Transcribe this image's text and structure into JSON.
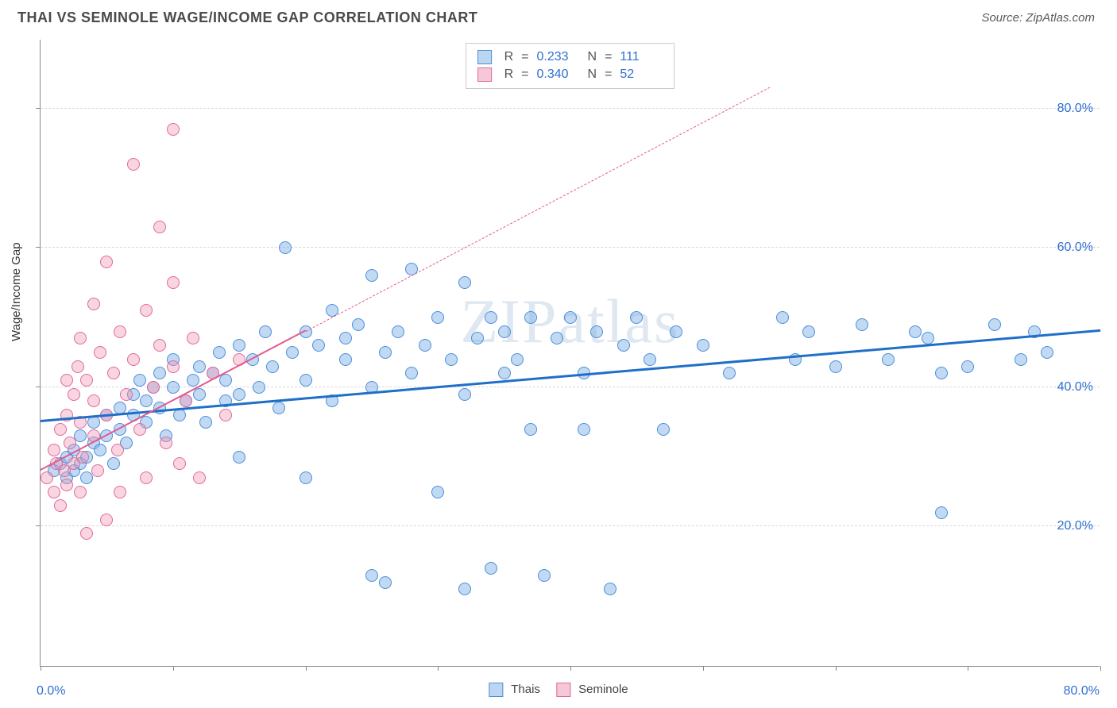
{
  "header": {
    "title": "THAI VS SEMINOLE WAGE/INCOME GAP CORRELATION CHART",
    "source": "Source: ZipAtlas.com"
  },
  "watermark": "ZIPatlas",
  "chart": {
    "type": "scatter",
    "ylabel": "Wage/Income Gap",
    "xlim": [
      0,
      80
    ],
    "ylim": [
      0,
      90
    ],
    "xticks": [
      0,
      10,
      20,
      30,
      40,
      50,
      60,
      70,
      80
    ],
    "ygrid": [
      20,
      40,
      60,
      80
    ],
    "ytick_labels": [
      "20.0%",
      "40.0%",
      "60.0%",
      "80.0%"
    ],
    "x_min_label": "0.0%",
    "x_max_label": "80.0%",
    "background_color": "#ffffff",
    "grid_color": "#d8d8d8",
    "ylabel_label_color": "#2f6fd0",
    "series": [
      {
        "name": "Thais",
        "marker_fill": "rgba(120,170,230,0.45)",
        "marker_stroke": "#4a90d9",
        "marker_size": 16,
        "swatch_fill": "#bcd6f2",
        "swatch_stroke": "#4a90d9",
        "R": "0.233",
        "N": "111",
        "trend": {
          "x1": 0,
          "y1": 35,
          "x2": 80,
          "y2": 48,
          "color": "#1f6fc9",
          "width": 3,
          "dashed": false
        },
        "points": [
          [
            1,
            28
          ],
          [
            1.5,
            29
          ],
          [
            2,
            30
          ],
          [
            2,
            27
          ],
          [
            2.5,
            28
          ],
          [
            2.5,
            31
          ],
          [
            3,
            29
          ],
          [
            3,
            33
          ],
          [
            3.5,
            30
          ],
          [
            3.5,
            27
          ],
          [
            4,
            32
          ],
          [
            4,
            35
          ],
          [
            4.5,
            31
          ],
          [
            5,
            36
          ],
          [
            5,
            33
          ],
          [
            5.5,
            29
          ],
          [
            6,
            37
          ],
          [
            6,
            34
          ],
          [
            6.5,
            32
          ],
          [
            7,
            39
          ],
          [
            7,
            36
          ],
          [
            7.5,
            41
          ],
          [
            8,
            38
          ],
          [
            8,
            35
          ],
          [
            8.5,
            40
          ],
          [
            9,
            42
          ],
          [
            9,
            37
          ],
          [
            9.5,
            33
          ],
          [
            10,
            40
          ],
          [
            10,
            44
          ],
          [
            10.5,
            36
          ],
          [
            11,
            38
          ],
          [
            11.5,
            41
          ],
          [
            12,
            39
          ],
          [
            12,
            43
          ],
          [
            12.5,
            35
          ],
          [
            13,
            42
          ],
          [
            13.5,
            45
          ],
          [
            14,
            38
          ],
          [
            14,
            41
          ],
          [
            15,
            46
          ],
          [
            15,
            39
          ],
          [
            15,
            30
          ],
          [
            16,
            44
          ],
          [
            16.5,
            40
          ],
          [
            17,
            48
          ],
          [
            17.5,
            43
          ],
          [
            18,
            37
          ],
          [
            18.5,
            60
          ],
          [
            19,
            45
          ],
          [
            20,
            41
          ],
          [
            20,
            48
          ],
          [
            20,
            27
          ],
          [
            21,
            46
          ],
          [
            22,
            38
          ],
          [
            22,
            51
          ],
          [
            23,
            44
          ],
          [
            23,
            47
          ],
          [
            24,
            49
          ],
          [
            25,
            40
          ],
          [
            25,
            56
          ],
          [
            25,
            13
          ],
          [
            26,
            45
          ],
          [
            26,
            12
          ],
          [
            27,
            48
          ],
          [
            28,
            42
          ],
          [
            28,
            57
          ],
          [
            29,
            46
          ],
          [
            30,
            50
          ],
          [
            30,
            25
          ],
          [
            31,
            44
          ],
          [
            32,
            39
          ],
          [
            32,
            11
          ],
          [
            32,
            55
          ],
          [
            33,
            47
          ],
          [
            34,
            50
          ],
          [
            34,
            14
          ],
          [
            35,
            42
          ],
          [
            35,
            48
          ],
          [
            36,
            44
          ],
          [
            37,
            50
          ],
          [
            37,
            34
          ],
          [
            38,
            13
          ],
          [
            39,
            47
          ],
          [
            40,
            50
          ],
          [
            41,
            42
          ],
          [
            41,
            34
          ],
          [
            42,
            48
          ],
          [
            43,
            11
          ],
          [
            44,
            46
          ],
          [
            45,
            50
          ],
          [
            46,
            44
          ],
          [
            47,
            34
          ],
          [
            48,
            48
          ],
          [
            50,
            46
          ],
          [
            52,
            42
          ],
          [
            56,
            50
          ],
          [
            57,
            44
          ],
          [
            58,
            48
          ],
          [
            60,
            43
          ],
          [
            62,
            49
          ],
          [
            64,
            44
          ],
          [
            66,
            48
          ],
          [
            67,
            47
          ],
          [
            68,
            22
          ],
          [
            70,
            43
          ],
          [
            72,
            49
          ],
          [
            74,
            44
          ],
          [
            75,
            48
          ],
          [
            76,
            45
          ],
          [
            68,
            42
          ]
        ]
      },
      {
        "name": "Seminole",
        "marker_fill": "rgba(240,150,180,0.40)",
        "marker_stroke": "#e06a9a",
        "marker_size": 16,
        "swatch_fill": "#f6c7d8",
        "swatch_stroke": "#e06a9a",
        "R": "0.340",
        "N": "52",
        "trend": {
          "x1": 0,
          "y1": 28,
          "x2": 20,
          "y2": 48,
          "extend_to_x": 55,
          "extend_to_y": 83,
          "color": "#e35a8e",
          "width": 2.5,
          "dashed_after": true
        },
        "points": [
          [
            0.5,
            27
          ],
          [
            1,
            25
          ],
          [
            1,
            31
          ],
          [
            1.2,
            29
          ],
          [
            1.5,
            23
          ],
          [
            1.5,
            34
          ],
          [
            1.8,
            28
          ],
          [
            2,
            26
          ],
          [
            2,
            36
          ],
          [
            2,
            41
          ],
          [
            2.2,
            32
          ],
          [
            2.5,
            39
          ],
          [
            2.5,
            29
          ],
          [
            2.8,
            43
          ],
          [
            3,
            35
          ],
          [
            3,
            25
          ],
          [
            3,
            47
          ],
          [
            3.2,
            30
          ],
          [
            3.5,
            41
          ],
          [
            3.5,
            19
          ],
          [
            4,
            38
          ],
          [
            4,
            33
          ],
          [
            4,
            52
          ],
          [
            4.3,
            28
          ],
          [
            4.5,
            45
          ],
          [
            5,
            36
          ],
          [
            5,
            21
          ],
          [
            5,
            58
          ],
          [
            5.5,
            42
          ],
          [
            5.8,
            31
          ],
          [
            6,
            48
          ],
          [
            6,
            25
          ],
          [
            6.5,
            39
          ],
          [
            7,
            44
          ],
          [
            7,
            72
          ],
          [
            7.5,
            34
          ],
          [
            8,
            51
          ],
          [
            8,
            27
          ],
          [
            8.5,
            40
          ],
          [
            9,
            46
          ],
          [
            9,
            63
          ],
          [
            9.5,
            32
          ],
          [
            10,
            55
          ],
          [
            10,
            43
          ],
          [
            10.5,
            29
          ],
          [
            10,
            77
          ],
          [
            11,
            38
          ],
          [
            11.5,
            47
          ],
          [
            12,
            27
          ],
          [
            13,
            42
          ],
          [
            14,
            36
          ],
          [
            15,
            44
          ]
        ]
      }
    ]
  },
  "bottom_legend": {
    "label1": "Thais",
    "label2": "Seminole"
  },
  "stat_legend": {
    "r_label": "R",
    "n_label": "N",
    "eq": "="
  }
}
